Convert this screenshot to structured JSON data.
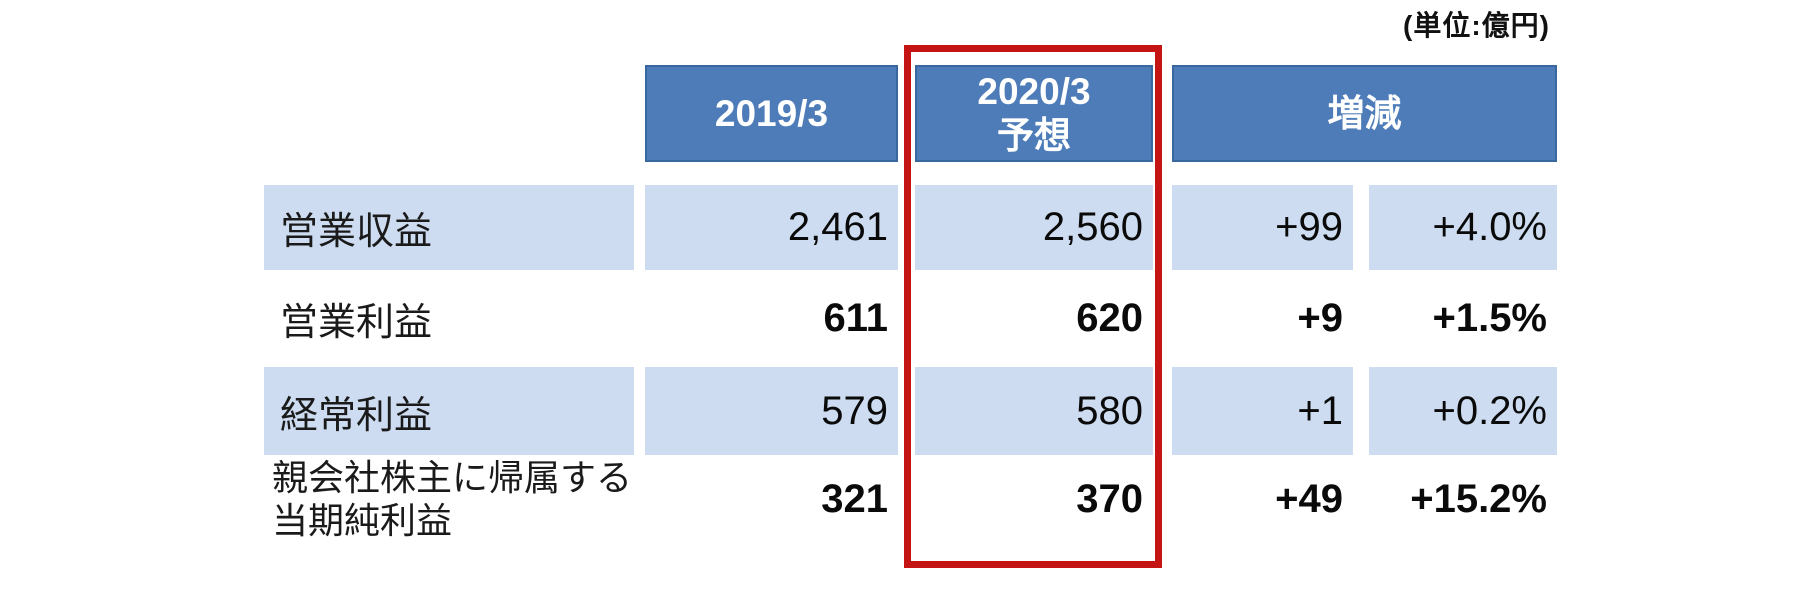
{
  "unit_label": "(単位:億円)",
  "colors": {
    "header_blue": "#4d7cb8",
    "header_border_blue": "#39689f",
    "row_light_blue": "#cddcf0",
    "highlight_red": "#c41414"
  },
  "table": {
    "headers": {
      "fy2019": "2019/3",
      "fy2020_forecast": "2020/3\n予想",
      "change": "増減"
    },
    "rows": [
      {
        "label": "営業収益",
        "fy2019": "2,461",
        "fy2020": "2,560",
        "change": "+99",
        "change_pct": "+4.0%"
      },
      {
        "label": "営業利益",
        "fy2019": "611",
        "fy2020": "620",
        "change": "+9",
        "change_pct": "+1.5%"
      },
      {
        "label": "経常利益",
        "fy2019": "579",
        "fy2020": "580",
        "change": "+1",
        "change_pct": "+0.2%"
      },
      {
        "label": "親会社株主に帰属する\n当期純利益",
        "fy2019": "321",
        "fy2020": "370",
        "change": "+49",
        "change_pct": "+15.2%"
      }
    ]
  },
  "chart_data": {
    "type": "table",
    "unit_note": "(単位:億円)",
    "column_headers": [
      "2019/3",
      "2020/3 予想",
      "増減"
    ],
    "rows": [
      {
        "label": "営業収益",
        "fy2019_3": 2461,
        "fy2020_3_forecast": 2560,
        "change": 99,
        "change_percent": 4.0
      },
      {
        "label": "営業利益",
        "fy2019_3": 611,
        "fy2020_3_forecast": 620,
        "change": 9,
        "change_percent": 1.5
      },
      {
        "label": "経常利益",
        "fy2019_3": 579,
        "fy2020_3_forecast": 580,
        "change": 1,
        "change_percent": 0.2
      },
      {
        "label": "親会社株主に帰属する当期純利益",
        "fy2019_3": 321,
        "fy2020_3_forecast": 370,
        "change": 49,
        "change_percent": 15.2
      }
    ],
    "highlight": "2020/3 予想 column outlined with red rectangle",
    "layout": "bold values on white rows (営業利益, 当期純利益); light blue bands on 営業収益 and 経常利益 rows"
  }
}
